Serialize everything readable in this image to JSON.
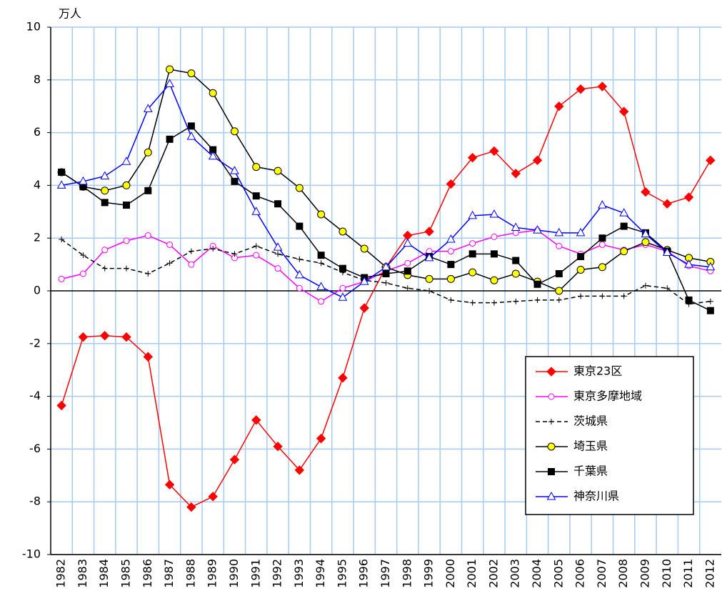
{
  "chart_data": {
    "type": "line",
    "y_unit_label": "万人",
    "categories": [
      "1982",
      "1983",
      "1984",
      "1985",
      "1986",
      "1987",
      "1988",
      "1989",
      "1990",
      "1991",
      "1992",
      "1993",
      "1994",
      "1995",
      "1996",
      "1997",
      "1998",
      "1999",
      "2000",
      "2001",
      "2002",
      "2003",
      "2004",
      "2005",
      "2006",
      "2007",
      "2008",
      "2009",
      "2010",
      "2011",
      "2012"
    ],
    "ylim": [
      -10,
      10
    ],
    "yticks": [
      -10,
      -8,
      -6,
      -4,
      -2,
      0,
      2,
      4,
      6,
      8,
      10
    ],
    "grid": true,
    "series": [
      {
        "name": "東京23区",
        "color": "#ff0000",
        "marker": "diamond",
        "marker_fill": "#ff0000",
        "dashed": false,
        "values": [
          -4.35,
          -1.75,
          -1.7,
          -1.75,
          -2.5,
          -7.35,
          -8.2,
          -7.8,
          -6.4,
          -4.9,
          -5.9,
          -6.8,
          -5.6,
          -3.3,
          -0.65,
          0.9,
          2.1,
          2.25,
          4.05,
          5.05,
          5.3,
          4.45,
          4.95,
          7.0,
          7.65,
          7.75,
          6.8,
          3.75,
          3.3,
          3.55,
          4.95
        ]
      },
      {
        "name": "東京多摩地域",
        "color": "#ff00ff",
        "marker": "circle",
        "marker_fill": "#ffffff",
        "dashed": false,
        "values": [
          0.45,
          0.65,
          1.55,
          1.9,
          2.1,
          1.75,
          1.0,
          1.7,
          1.25,
          1.35,
          0.85,
          0.1,
          -0.4,
          0.1,
          0.35,
          0.75,
          1.05,
          1.5,
          1.5,
          1.8,
          2.05,
          2.2,
          2.3,
          1.7,
          1.4,
          1.75,
          1.55,
          1.75,
          1.5,
          0.95,
          0.75
        ]
      },
      {
        "name": "茨城県",
        "color": "#000000",
        "marker": "plus",
        "marker_fill": "#000000",
        "dashed": true,
        "values": [
          1.95,
          1.35,
          0.85,
          0.85,
          0.65,
          1.05,
          1.5,
          1.6,
          1.4,
          1.7,
          1.4,
          1.2,
          1.05,
          0.7,
          0.4,
          0.3,
          0.1,
          0.0,
          -0.35,
          -0.45,
          -0.45,
          -0.4,
          -0.35,
          -0.35,
          -0.2,
          -0.2,
          -0.2,
          0.2,
          0.1,
          -0.5,
          -0.4
        ]
      },
      {
        "name": "埼玉県",
        "color": "#000000",
        "marker": "circle",
        "marker_fill": "#ffff00",
        "dashed": false,
        "values": [
          4.5,
          3.95,
          3.8,
          4.0,
          5.25,
          8.4,
          8.25,
          7.5,
          6.05,
          4.7,
          4.55,
          3.9,
          2.9,
          2.25,
          1.6,
          0.9,
          0.6,
          0.45,
          0.45,
          0.7,
          0.4,
          0.65,
          0.35,
          0.0,
          0.8,
          0.9,
          1.5,
          1.85,
          1.55,
          1.25,
          1.1
        ]
      },
      {
        "name": "千葉県",
        "color": "#000000",
        "marker": "square",
        "marker_fill": "#000000",
        "dashed": false,
        "values": [
          4.5,
          3.95,
          3.35,
          3.25,
          3.8,
          5.75,
          6.25,
          5.35,
          4.15,
          3.6,
          3.3,
          2.45,
          1.35,
          0.85,
          0.5,
          0.65,
          0.75,
          1.3,
          1.0,
          1.4,
          1.4,
          1.15,
          0.25,
          0.65,
          1.3,
          2.0,
          2.45,
          2.2,
          1.5,
          -0.35,
          -0.75
        ]
      },
      {
        "name": "神奈川県",
        "color": "#0000ff",
        "marker": "triangle",
        "marker_fill": "#ffffff",
        "dashed": false,
        "values": [
          4.0,
          4.15,
          4.35,
          4.9,
          6.9,
          7.85,
          5.85,
          5.1,
          4.55,
          3.0,
          1.65,
          0.6,
          0.15,
          -0.25,
          0.35,
          0.9,
          1.8,
          1.25,
          1.95,
          2.85,
          2.9,
          2.4,
          2.3,
          2.2,
          2.2,
          3.25,
          2.95,
          2.15,
          1.45,
          1.0,
          0.9
        ]
      }
    ]
  }
}
